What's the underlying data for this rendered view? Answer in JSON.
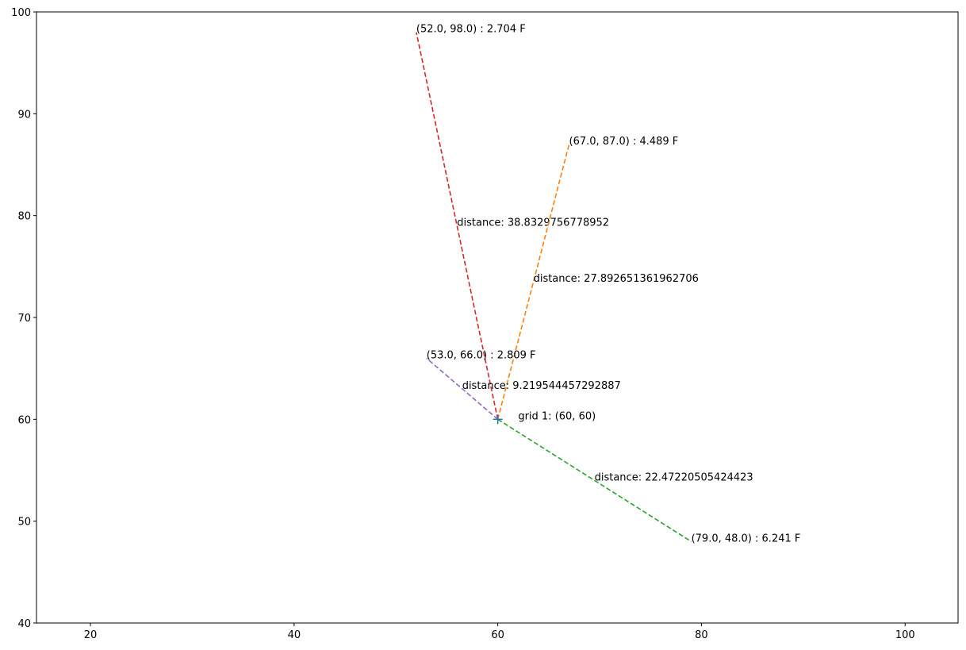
{
  "chart_data": {
    "type": "line",
    "title": "",
    "xlabel": "",
    "ylabel": "",
    "xlim": [
      14.7,
      105.2
    ],
    "ylim": [
      40,
      100
    ],
    "grid": false,
    "x_ticks": [
      "20",
      "40",
      "60",
      "80",
      "100"
    ],
    "y_ticks": [
      "40",
      "50",
      "60",
      "70",
      "80",
      "90",
      "100"
    ],
    "center": {
      "x": 60,
      "y": 60,
      "label": "grid 1: (60, 60)",
      "label_x": 62,
      "label_y": 60,
      "marker": "+",
      "color": "#1f77b4"
    },
    "series": [
      {
        "x": [
          60,
          52
        ],
        "y": [
          60,
          98
        ],
        "color": "#d62728",
        "style": "dashed",
        "point_label": "(52.0, 98.0) : 2.704 F",
        "distance_label": "distance: 38.8329756778952"
      },
      {
        "x": [
          60,
          67
        ],
        "y": [
          60,
          87
        ],
        "color": "#ff7f0e",
        "style": "dashed",
        "point_label": "(67.0, 87.0) : 4.489 F",
        "distance_label": "distance: 27.892651361962706"
      },
      {
        "x": [
          60,
          79
        ],
        "y": [
          60,
          48
        ],
        "color": "#2ca02c",
        "style": "dashed",
        "point_label": "(79.0, 48.0) : 6.241 F",
        "distance_label": "distance: 22.47220505424423"
      },
      {
        "x": [
          60,
          53
        ],
        "y": [
          60,
          66
        ],
        "color": "#9467bd",
        "style": "dashed",
        "point_label": "(53.0, 66.0) : 2.809 F",
        "distance_label": "distance: 9.219544457292887"
      }
    ]
  }
}
